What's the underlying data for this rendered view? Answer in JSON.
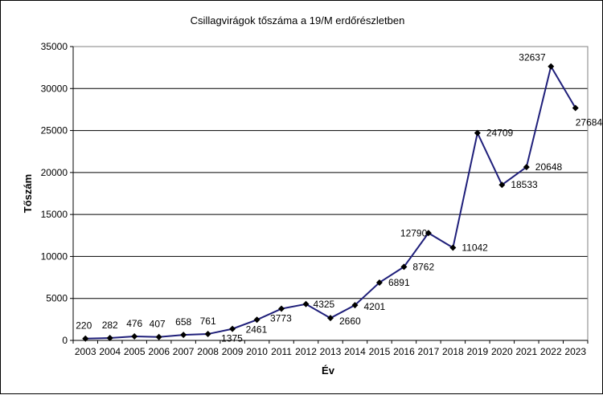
{
  "chart_data": {
    "type": "line",
    "title": "Csillagvirágok tőszáma a 19/M erdőrészletben",
    "xlabel": "Év",
    "ylabel": "Tőszám",
    "ylim": [
      0,
      35000
    ],
    "yticks": [
      0,
      5000,
      10000,
      15000,
      20000,
      25000,
      30000,
      35000
    ],
    "grid": "horizontal",
    "legend": "none",
    "marker": "diamond",
    "categories": [
      "2003",
      "2004",
      "2005",
      "2006",
      "2007",
      "2008",
      "2009",
      "2010",
      "2011",
      "2012",
      "2013",
      "2014",
      "2015",
      "2016",
      "2017",
      "2018",
      "2019",
      "2020",
      "2021",
      "2022",
      "2023"
    ],
    "series": [
      {
        "values": [
          220,
          282,
          476,
          407,
          658,
          761,
          1375,
          2461,
          3773,
          4325,
          2660,
          4201,
          6891,
          8762,
          12790,
          11042,
          24709,
          18533,
          20648,
          32637,
          27684
        ]
      }
    ],
    "colors": {
      "line": "#1f1f7a",
      "marker": "#000000",
      "grid": "#000000"
    }
  }
}
